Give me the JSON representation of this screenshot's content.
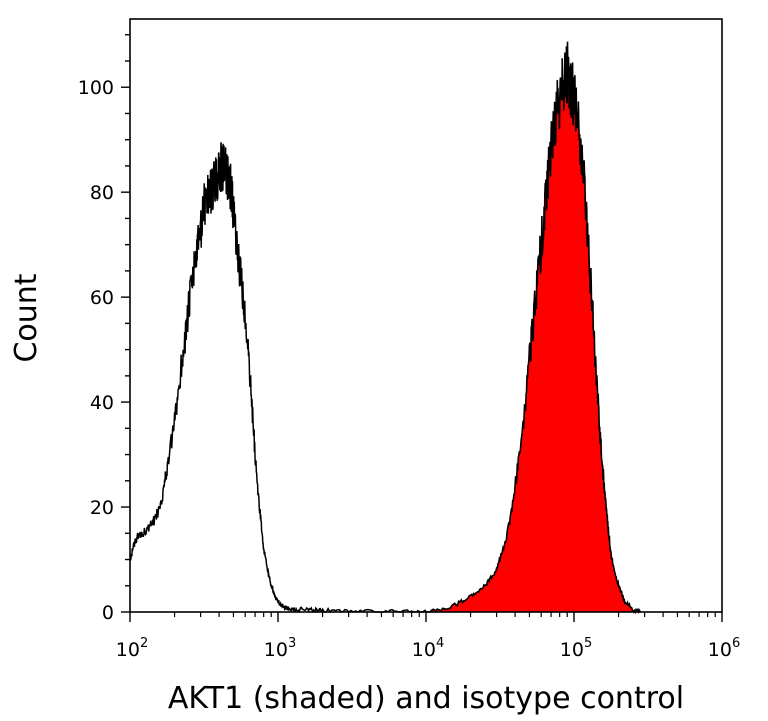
{
  "chart_data": {
    "type": "area",
    "xlabel": "AKT1 (shaded) and isotype control",
    "ylabel": "Count",
    "x_scale": "log10",
    "xlim": [
      100,
      1000000
    ],
    "ylim": [
      0,
      113
    ],
    "x_ticks": [
      {
        "value": 100,
        "base": "10",
        "exp": "2"
      },
      {
        "value": 1000,
        "base": "10",
        "exp": "3"
      },
      {
        "value": 10000,
        "base": "10",
        "exp": "4"
      },
      {
        "value": 100000,
        "base": "10",
        "exp": "5"
      },
      {
        "value": 1000000,
        "base": "10",
        "exp": "6"
      }
    ],
    "y_ticks": [
      "0",
      "20",
      "40",
      "60",
      "80",
      "100"
    ],
    "grid": false,
    "series": [
      {
        "style": "outline",
        "color": "#000000",
        "x": [
          100,
          110,
          120,
          135,
          150,
          165,
          180,
          200,
          220,
          240,
          260,
          280,
          300,
          320,
          340,
          360,
          380,
          400,
          420,
          440,
          460,
          480,
          500,
          530,
          560,
          600,
          650,
          700,
          750,
          800,
          850,
          900,
          950,
          1000,
          1100,
          1200,
          1400,
          1700,
          2000,
          3000,
          5000,
          8000,
          10000
        ],
        "y": [
          10,
          14,
          15,
          16,
          18,
          22,
          28,
          36,
          46,
          54,
          62,
          68,
          72,
          78,
          80,
          81,
          82,
          84,
          85,
          84,
          83,
          81,
          76,
          68,
          64,
          56,
          44,
          30,
          20,
          12,
          8,
          5,
          3,
          2,
          1,
          0.5,
          0.5,
          0.5,
          0.3,
          0.2,
          0.1,
          0,
          0
        ]
      },
      {
        "style": "filled",
        "color": "#ff0000",
        "x": [
          10000,
          15000,
          20000,
          25000,
          30000,
          35000,
          40000,
          45000,
          50000,
          55000,
          60000,
          65000,
          70000,
          75000,
          80000,
          85000,
          90000,
          95000,
          100000,
          110000,
          120000,
          130000,
          140000,
          150000,
          160000,
          170000,
          180000,
          200000,
          220000,
          250000,
          280000
        ],
        "y": [
          0,
          1,
          3,
          5,
          8,
          14,
          24,
          34,
          48,
          60,
          70,
          80,
          88,
          94,
          98,
          101,
          103,
          100,
          98,
          90,
          78,
          62,
          48,
          34,
          24,
          16,
          10,
          5,
          2,
          0.5,
          0
        ]
      }
    ]
  }
}
